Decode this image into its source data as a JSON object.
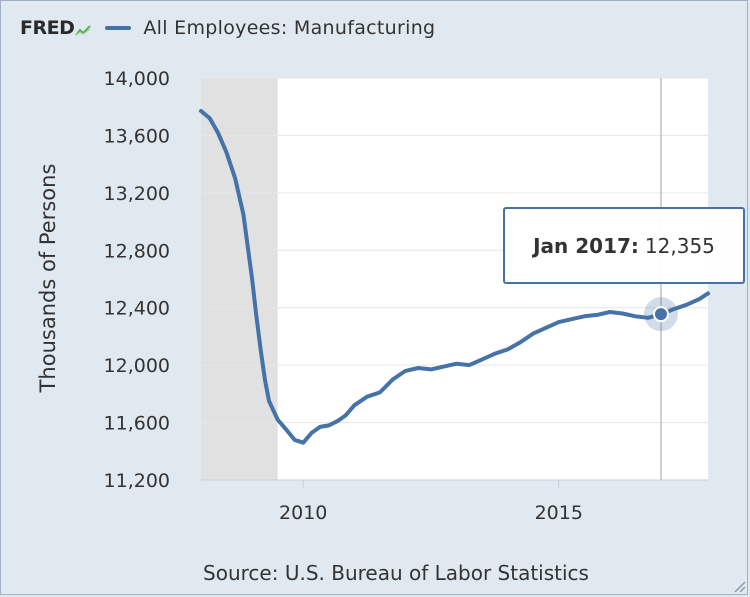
{
  "header": {
    "logo_text": "FRED",
    "series_title": "All Employees: Manufacturing"
  },
  "source_text": "Source: U.S. Bureau of Labor Statistics",
  "tooltip": {
    "date": "Jan 2017:",
    "value": "12,355"
  },
  "colors": {
    "series": "#4572a7",
    "recession": "#e1e1e1",
    "background": "#e1e9f0",
    "plot_bg": "#ffffff"
  },
  "chart_data": {
    "type": "line",
    "title": "All Employees: Manufacturing",
    "ylabel": "Thousands of Persons",
    "xlabel": "",
    "xlim": [
      2008.0,
      2017.92
    ],
    "ylim": [
      11200,
      14000
    ],
    "y_ticks": [
      11200,
      11600,
      12000,
      12400,
      12800,
      13200,
      13600,
      14000
    ],
    "y_tick_labels": [
      "11,200",
      "11,600",
      "12,000",
      "12,400",
      "12,800",
      "13,200",
      "13,600",
      "14,000"
    ],
    "x_ticks": [
      2010,
      2015
    ],
    "x_tick_labels": [
      "2010",
      "2015"
    ],
    "grid": true,
    "legend": "top-left",
    "recession_shading": [
      {
        "start": 2008.0,
        "end": 2009.5
      }
    ],
    "highlight": {
      "x": 2017.0,
      "y": 12355,
      "label": "Jan 2017"
    },
    "series": [
      {
        "name": "All Employees: Manufacturing",
        "x": [
          2008.0,
          2008.17,
          2008.33,
          2008.5,
          2008.67,
          2008.83,
          2009.0,
          2009.08,
          2009.17,
          2009.25,
          2009.33,
          2009.5,
          2009.67,
          2009.83,
          2010.0,
          2010.17,
          2010.33,
          2010.5,
          2010.67,
          2010.83,
          2011.0,
          2011.25,
          2011.5,
          2011.75,
          2012.0,
          2012.25,
          2012.5,
          2012.75,
          2013.0,
          2013.25,
          2013.5,
          2013.75,
          2014.0,
          2014.25,
          2014.5,
          2014.75,
          2015.0,
          2015.25,
          2015.5,
          2015.75,
          2016.0,
          2016.25,
          2016.5,
          2016.75,
          2017.0,
          2017.25,
          2017.5,
          2017.75,
          2017.92
        ],
        "y": [
          13770,
          13720,
          13620,
          13480,
          13300,
          13050,
          12600,
          12350,
          12100,
          11900,
          11750,
          11620,
          11550,
          11480,
          11460,
          11530,
          11570,
          11580,
          11610,
          11650,
          11720,
          11780,
          11810,
          11900,
          11960,
          11980,
          11970,
          11990,
          12010,
          12000,
          12040,
          12080,
          12110,
          12160,
          12220,
          12260,
          12300,
          12320,
          12340,
          12350,
          12370,
          12360,
          12340,
          12330,
          12355,
          12390,
          12420,
          12460,
          12500
        ]
      }
    ]
  }
}
